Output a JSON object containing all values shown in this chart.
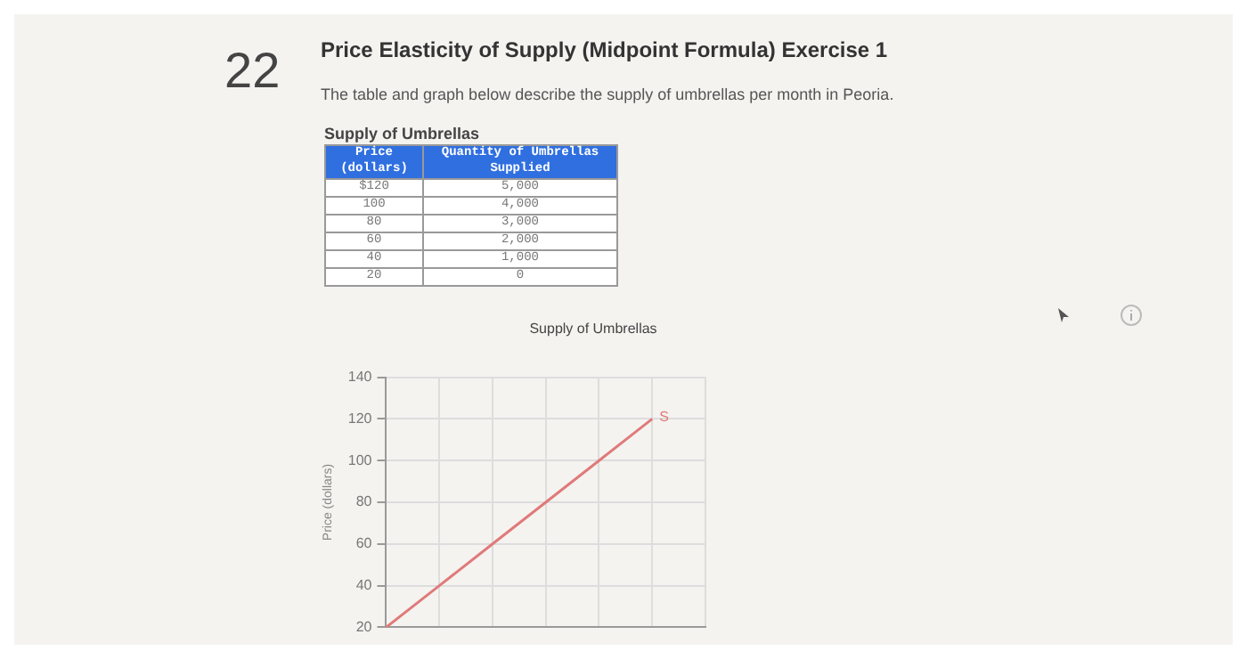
{
  "chart_data": {
    "type": "line",
    "title": "Price Elasticity of Supply (Midpoint Formula) Exercise 1",
    "subtitle": "The table and graph below describe the supply of umbrellas per month in Peoria.",
    "ylabel": "Price (dollars)",
    "annotations": [
      "22",
      "Supply of Umbrellas",
      "Supply of Umbrellas",
      "Quantity of Umbrellas Supplied",
      "5,000",
      "4,000",
      "3,000",
      "2,000",
      "1,000",
      "0",
      "$120",
      "100",
      "80",
      "60",
      "40",
      "20"
    ],
    "categories": [
      null,
      null,
      null,
      null,
      null,
      null,
      null
    ],
    "series": [
      {
        "name": "S",
        "color": "#e07a7a",
        "values": [
          20,
          40,
          60,
          80,
          100,
          120,
          null
        ]
      }
    ],
    "ylim": [
      20,
      140
    ],
    "yticks": [
      20,
      40,
      60,
      80,
      100,
      120,
      140
    ],
    "grid": true,
    "legend": false,
    "marker": "none",
    "line_style": "solid",
    "tick_labels": "y"
  }
}
